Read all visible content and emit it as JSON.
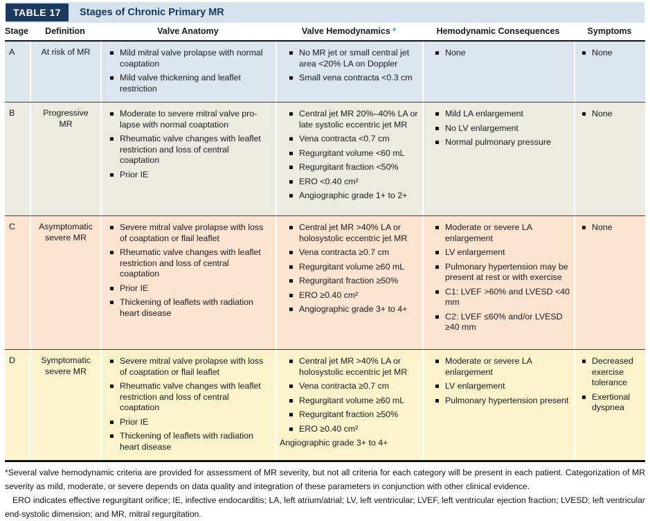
{
  "table": {
    "tag": "TABLE 17",
    "title": "Stages of Chronic Primary MR",
    "headers": {
      "stage": "Stage",
      "definition": "Definition",
      "anatomy": "Valve Anatomy",
      "hemodynamics": "Valve Hemodynamics",
      "hemodynamics_asterisk": "*",
      "consequences": "Hemodynamic Consequences",
      "symptoms": "Symptoms"
    },
    "rows": [
      {
        "stage": "A",
        "definition": "At risk of MR",
        "anatomy": [
          "Mild mitral valve prolapse with normal coaptation",
          "Mild valve thickening and leaflet restriction"
        ],
        "hemodynamics": [
          "No MR jet or small central jet area <20% LA on Doppler",
          "Small vena contracta <0.3 cm"
        ],
        "consequences": [
          "None"
        ],
        "symptoms": [
          "None"
        ]
      },
      {
        "stage": "B",
        "definition": "Progressive MR",
        "anatomy": [
          "Moderate to severe mitral valve pro­lapse with normal coaptation",
          "Rheumatic valve changes with leaflet restriction and loss of central coaptation",
          "Prior IE"
        ],
        "hemodynamics": [
          "Central jet MR 20%–40% LA or late systolic eccentric jet MR",
          "Vena contracta <0.7 cm",
          "Regurgitant volume <60 mL",
          "Regurgitant fraction <50%",
          "ERO <0.40 cm²",
          "Angiographic grade 1+ to 2+"
        ],
        "consequences": [
          "Mild LA enlargement",
          "No LV enlargement",
          "Normal pulmonary pressure"
        ],
        "symptoms": [
          "None"
        ]
      },
      {
        "stage": "C",
        "definition": "Asymptomatic severe MR",
        "anatomy": [
          "Severe mitral valve prolapse with loss of coaptation or flail leaflet",
          "Rheumatic valve changes with leaflet restriction and loss of central coaptation",
          "Prior IE",
          "Thickening of leaflets with radiation heart disease"
        ],
        "hemodynamics": [
          "Central jet MR >40% LA or holosystolic eccentric jet MR",
          "Vena contracta ≥0.7 cm",
          "Regurgitant volume ≥60 mL",
          "Regurgitant fraction ≥50%",
          "ERO ≥0.40 cm²",
          "Angiographic grade 3+ to 4+"
        ],
        "consequences": [
          "Moderate or severe LA enlargement",
          "LV enlargement",
          "Pulmonary hypertension may be present at rest or with exercise",
          "C1: LVEF >60% and LVESD <40 mm",
          "C2: LVEF ≤60% and/or LVESD ≥40 mm"
        ],
        "symptoms": [
          "None"
        ]
      },
      {
        "stage": "D",
        "definition": "Symptomatic severe MR",
        "anatomy": [
          "Severe mitral valve prolapse with loss of coaptation or flail leaflet",
          "Rheumatic valve changes with leaflet restriction and loss of central coaptation",
          "Prior IE",
          "Thickening of leaflets with radiation heart disease"
        ],
        "hemodynamics": [
          "Central jet MR >40% LA or holosystolic eccentric jet MR",
          "Vena contracta ≥0.7 cm",
          "Regurgitant volume ≥60 mL",
          "Regurgitant fraction ≥50%",
          "ERO ≥0.40 cm²"
        ],
        "hemodynamics_trailing": "Angiographic grade 3+ to 4+",
        "consequences": [
          "Moderate or severe LA enlargement",
          "LV enlargement",
          "Pulmonary hypertension present"
        ],
        "symptoms": [
          "Decreased exercise tolerance",
          "Exertional dyspnea"
        ]
      }
    ]
  },
  "footnotes": {
    "asterisk_note": "*Several valve hemodynamic criteria are provided for assessment of MR severity, but not all criteria for each category will be present in each patient. Categorization of MR severity as mild, moderate, or severe depends on data quality and integration of these parameters in conjunction with other clinical evidence.",
    "abbreviations": "ERO indicates effective regurgitant orifice; IE, infective endocarditis; LA, left atrium/atrial; LV, left ventricular; LVEF, left ventricular ejection fraction; LVESD; left ventricular end-systolic dimension; and MR, mitral regurgitation."
  },
  "colors": {
    "navy": "#1b3a5e",
    "title_bar_bg": "#d6e3ee",
    "row_a_bg": "#dce5ee",
    "row_b_bg": "#ecebe2",
    "row_c_bg": "#fce4d0",
    "row_d_bg": "#faf3cc",
    "asterisk_blue": "#2a9fd8",
    "rule_black": "#111111"
  }
}
